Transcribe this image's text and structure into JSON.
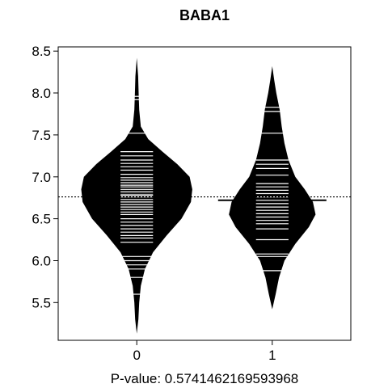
{
  "chart_data": {
    "type": "beanplot",
    "title": "BABA1",
    "xlabel": "P-value: 0.5741462169593968",
    "ylabel": "",
    "ylim": [
      5.05,
      8.55
    ],
    "xlim": [
      -0.58,
      1.58
    ],
    "categories": [
      "0",
      "1"
    ],
    "y_ticks": [
      5.5,
      6.0,
      6.5,
      7.0,
      7.5,
      8.0,
      8.5
    ],
    "y_tick_labels": [
      "5.5",
      "6.0",
      "6.5",
      "7.0",
      "7.5",
      "8.0",
      "8.5"
    ],
    "overall_mean": 6.76,
    "beans": [
      {
        "name": "0",
        "x": 0,
        "mean": 6.78,
        "density": [
          [
            5.13,
            0.0
          ],
          [
            5.3,
            0.012
          ],
          [
            5.5,
            0.018
          ],
          [
            5.7,
            0.03
          ],
          [
            5.9,
            0.06
          ],
          [
            6.1,
            0.12
          ],
          [
            6.3,
            0.22
          ],
          [
            6.5,
            0.33
          ],
          [
            6.7,
            0.4
          ],
          [
            6.85,
            0.41
          ],
          [
            7.0,
            0.39
          ],
          [
            7.15,
            0.3
          ],
          [
            7.3,
            0.19
          ],
          [
            7.45,
            0.085
          ],
          [
            7.6,
            0.03
          ],
          [
            7.8,
            0.018
          ],
          [
            8.0,
            0.014
          ],
          [
            8.2,
            0.01
          ],
          [
            8.42,
            0.0
          ]
        ],
        "observations": [
          5.6,
          5.8,
          5.9,
          5.95,
          6.0,
          6.05,
          6.22,
          6.27,
          6.3,
          6.34,
          6.38,
          6.42,
          6.46,
          6.5,
          6.55,
          6.58,
          6.61,
          6.64,
          6.67,
          6.7,
          6.73,
          6.76,
          6.79,
          6.82,
          6.85,
          6.88,
          6.9,
          6.93,
          6.96,
          6.99,
          7.03,
          7.08,
          7.12,
          7.16,
          7.2,
          7.25,
          7.3,
          7.52,
          7.92,
          7.96
        ]
      },
      {
        "name": "1",
        "x": 1,
        "mean": 6.72,
        "density": [
          [
            5.42,
            0.0
          ],
          [
            5.6,
            0.025
          ],
          [
            5.8,
            0.05
          ],
          [
            6.0,
            0.09
          ],
          [
            6.2,
            0.17
          ],
          [
            6.4,
            0.27
          ],
          [
            6.55,
            0.32
          ],
          [
            6.7,
            0.3
          ],
          [
            6.85,
            0.24
          ],
          [
            7.0,
            0.17
          ],
          [
            7.2,
            0.12
          ],
          [
            7.4,
            0.09
          ],
          [
            7.6,
            0.07
          ],
          [
            7.8,
            0.055
          ],
          [
            8.0,
            0.03
          ],
          [
            8.15,
            0.015
          ],
          [
            8.32,
            0.0
          ]
        ],
        "observations": [
          5.88,
          6.05,
          6.08,
          6.25,
          6.38,
          6.44,
          6.48,
          6.52,
          6.56,
          6.6,
          6.64,
          6.68,
          6.72,
          6.76,
          6.8,
          6.84,
          6.88,
          6.92,
          7.02,
          7.1,
          7.15,
          7.2,
          7.52,
          7.78,
          7.83
        ]
      }
    ]
  }
}
